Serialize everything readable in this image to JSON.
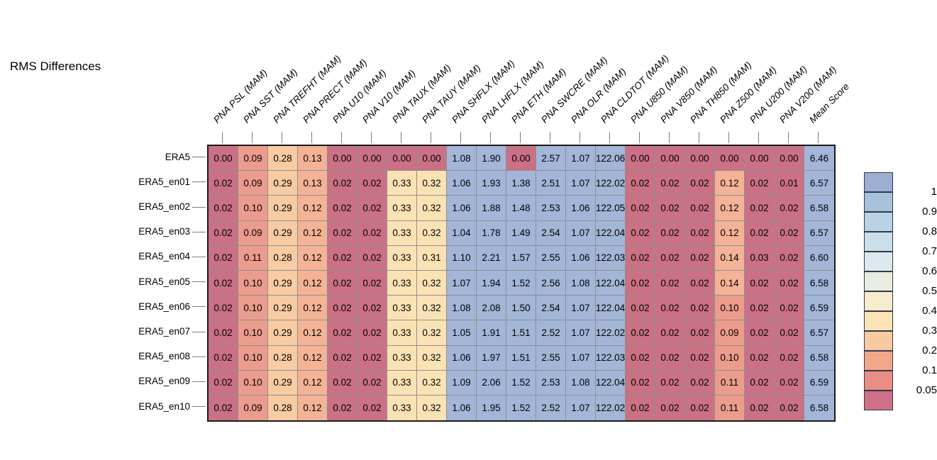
{
  "title": "RMS Differences",
  "chart_data": {
    "type": "heatmap",
    "title": "RMS Differences",
    "season": "MAM",
    "columns": [
      "PNA PSL (MAM)",
      "PNA SST (MAM)",
      "PNA TREFHT (MAM)",
      "PNA PRECT (MAM)",
      "PNA U10 (MAM)",
      "PNA V10 (MAM)",
      "PNA TAUX (MAM)",
      "PNA TAUY (MAM)",
      "PNA SHFLX (MAM)",
      "PNA LHFLX (MAM)",
      "PNA ETH (MAM)",
      "PNA SWCRE (MAM)",
      "PNA OLR (MAM)",
      "PNA CLDTOT (MAM)",
      "PNA U850 (MAM)",
      "PNA V850 (MAM)",
      "PNA TH850 (MAM)",
      "PNA Z500 (MAM)",
      "PNA U200 (MAM)",
      "PNA V200 (MAM)",
      "Mean Score"
    ],
    "rows": [
      "ERA5",
      "ERA5_en01",
      "ERA5_en02",
      "ERA5_en03",
      "ERA5_en04",
      "ERA5_en05",
      "ERA5_en06",
      "ERA5_en07",
      "ERA5_en08",
      "ERA5_en09",
      "ERA5_en10"
    ],
    "values": [
      [
        0.0,
        0.09,
        0.28,
        0.13,
        0.0,
        0.0,
        0.0,
        0.0,
        1.08,
        1.9,
        0.0,
        2.57,
        1.07,
        122.06,
        0.0,
        0.0,
        0.0,
        0.0,
        0.0,
        0.0,
        6.46
      ],
      [
        0.02,
        0.09,
        0.29,
        0.13,
        0.02,
        0.02,
        0.33,
        0.32,
        1.06,
        1.93,
        1.38,
        2.51,
        1.07,
        122.02,
        0.02,
        0.02,
        0.02,
        0.12,
        0.02,
        0.01,
        6.57
      ],
      [
        0.02,
        0.1,
        0.29,
        0.12,
        0.02,
        0.02,
        0.33,
        0.32,
        1.06,
        1.88,
        1.48,
        2.53,
        1.06,
        122.05,
        0.02,
        0.02,
        0.02,
        0.12,
        0.02,
        0.02,
        6.58
      ],
      [
        0.02,
        0.09,
        0.29,
        0.12,
        0.02,
        0.02,
        0.33,
        0.32,
        1.04,
        1.78,
        1.49,
        2.54,
        1.07,
        122.04,
        0.02,
        0.02,
        0.02,
        0.12,
        0.02,
        0.02,
        6.57
      ],
      [
        0.02,
        0.11,
        0.28,
        0.12,
        0.02,
        0.02,
        0.33,
        0.31,
        1.1,
        2.21,
        1.57,
        2.55,
        1.06,
        122.03,
        0.02,
        0.02,
        0.02,
        0.14,
        0.03,
        0.02,
        6.6
      ],
      [
        0.02,
        0.1,
        0.29,
        0.12,
        0.02,
        0.02,
        0.33,
        0.32,
        1.07,
        1.94,
        1.52,
        2.56,
        1.08,
        122.04,
        0.02,
        0.02,
        0.02,
        0.14,
        0.02,
        0.02,
        6.58
      ],
      [
        0.02,
        0.1,
        0.29,
        0.12,
        0.02,
        0.02,
        0.33,
        0.32,
        1.08,
        2.08,
        1.5,
        2.54,
        1.07,
        122.04,
        0.02,
        0.02,
        0.02,
        0.1,
        0.02,
        0.02,
        6.59
      ],
      [
        0.02,
        0.1,
        0.29,
        0.12,
        0.02,
        0.02,
        0.33,
        0.32,
        1.05,
        1.91,
        1.51,
        2.52,
        1.07,
        122.02,
        0.02,
        0.02,
        0.02,
        0.09,
        0.02,
        0.02,
        6.57
      ],
      [
        0.02,
        0.1,
        0.28,
        0.12,
        0.02,
        0.02,
        0.33,
        0.32,
        1.06,
        1.97,
        1.51,
        2.55,
        1.07,
        122.03,
        0.02,
        0.02,
        0.02,
        0.1,
        0.02,
        0.02,
        6.58
      ],
      [
        0.02,
        0.1,
        0.29,
        0.12,
        0.02,
        0.02,
        0.33,
        0.32,
        1.09,
        2.06,
        1.52,
        2.53,
        1.08,
        122.04,
        0.02,
        0.02,
        0.02,
        0.11,
        0.02,
        0.02,
        6.59
      ],
      [
        0.02,
        0.09,
        0.28,
        0.12,
        0.02,
        0.02,
        0.33,
        0.32,
        1.06,
        1.95,
        1.52,
        2.52,
        1.07,
        122.02,
        0.02,
        0.02,
        0.02,
        0.11,
        0.02,
        0.02,
        6.58
      ]
    ],
    "value_decimals": 2,
    "legend": {
      "position": "right",
      "tick_labels": [
        "1",
        "0.9",
        "0.8",
        "0.7",
        "0.6",
        "0.5",
        "0.4",
        "0.3",
        "0.2",
        "0.1",
        "0.05"
      ],
      "segment_colors": [
        "#9caed1",
        "#a9c2dc",
        "#b9d2e4",
        "#cbdeea",
        "#dde9ef",
        "#e9ece0",
        "#f7edcc",
        "#fce3b6",
        "#f9c9a1",
        "#f2a78b",
        "#e98e84",
        "#cf7089"
      ]
    },
    "color_bins": [
      {
        "max": 0.05,
        "color": "#ca7186"
      },
      {
        "max": 0.115,
        "color": "#eb9c8c"
      },
      {
        "max": 0.2,
        "color": "#f4b296"
      },
      {
        "max": 0.3,
        "color": "#f8cba3"
      },
      {
        "max": 1.0,
        "color": "#fbe2b5"
      },
      {
        "max": 1000000,
        "color": "#a3b6d8"
      }
    ],
    "grid_line_color": "#8f8f8f",
    "outer_border_color": "#1b1b1b"
  }
}
